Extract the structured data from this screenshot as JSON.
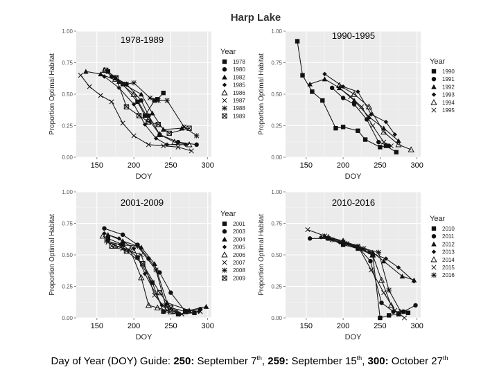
{
  "figure_title": "Harp Lake",
  "caption": {
    "lead": "Day of Year (DOY) Guide:",
    "items": [
      {
        "day": "250",
        "text": "September 7",
        "sup": "th",
        "sep": ","
      },
      {
        "day": "259",
        "text": "September 15",
        "sup": "th",
        "sep": ","
      },
      {
        "day": "300",
        "text": "October 27",
        "sup": "th",
        "sep": ""
      }
    ]
  },
  "chart_data": [
    {
      "type": "line",
      "title": "1978-1989",
      "xlabel": "DOY",
      "ylabel": "Proportion Optimal Habitat",
      "xlim": [
        122,
        305
      ],
      "ylim": [
        0,
        1
      ],
      "xticks": [
        "150",
        "200",
        "250",
        "300"
      ],
      "xtick_values": [
        150,
        200,
        250,
        300
      ],
      "yticks": [
        "0.00",
        "0.25",
        "0.50",
        "0.75",
        "1.00"
      ],
      "ytick_values": [
        0,
        0.25,
        0.5,
        0.75,
        1
      ],
      "legend_title": "Year",
      "series": [
        {
          "name": "1978",
          "marker": "square",
          "x": [
            165,
            185,
            205,
            215,
            228,
            232,
            240
          ],
          "y": [
            0.68,
            0.58,
            0.44,
            0.33,
            0.45,
            0.46,
            0.51
          ]
        },
        {
          "name": "1980",
          "marker": "circle",
          "x": [
            170,
            190,
            210,
            220,
            235,
            260,
            285
          ],
          "y": [
            0.64,
            0.58,
            0.45,
            0.33,
            0.18,
            0.12,
            0.1
          ]
        },
        {
          "name": "1982",
          "marker": "triangle",
          "x": [
            135,
            155,
            180,
            210,
            225,
            240,
            265
          ],
          "y": [
            0.68,
            0.66,
            0.6,
            0.5,
            0.35,
            0.22,
            0.23
          ]
        },
        {
          "name": "1985",
          "marker": "diamond",
          "x": [
            160,
            180,
            200,
            215,
            230,
            245,
            270
          ],
          "y": [
            0.64,
            0.55,
            0.42,
            0.26,
            0.15,
            0.1,
            0.1
          ]
        },
        {
          "name": "1986",
          "marker": "triangle-open",
          "x": [
            160,
            175,
            200,
            220,
            235,
            255,
            275
          ],
          "y": [
            0.69,
            0.62,
            0.5,
            0.3,
            0.18,
            0.12,
            0.1
          ]
        },
        {
          "name": "1987",
          "marker": "x",
          "x": [
            128,
            140,
            155,
            170,
            185,
            200,
            220,
            240,
            260,
            278
          ],
          "y": [
            0.65,
            0.56,
            0.49,
            0.44,
            0.27,
            0.17,
            0.1,
            0.09,
            0.08,
            0.05
          ]
        },
        {
          "name": "1988",
          "marker": "star",
          "x": [
            175,
            190,
            200,
            222,
            233,
            245,
            268,
            285
          ],
          "y": [
            0.63,
            0.58,
            0.59,
            0.47,
            0.45,
            0.45,
            0.24,
            0.17
          ]
        },
        {
          "name": "1989",
          "marker": "square-x",
          "x": [
            162,
            176,
            190,
            207,
            220,
            233,
            248,
            275
          ],
          "y": [
            0.69,
            0.63,
            0.4,
            0.33,
            0.28,
            0.26,
            0.19,
            0.23
          ]
        }
      ]
    },
    {
      "type": "line",
      "title": "1990-1995",
      "xlabel": "DOY",
      "ylabel": "Proportion Optimal Habitat",
      "xlim": [
        122,
        305
      ],
      "ylim": [
        0,
        1
      ],
      "xticks": [
        "150",
        "200",
        "250",
        "300"
      ],
      "xtick_values": [
        150,
        200,
        250,
        300
      ],
      "yticks": [
        "0.00",
        "0.25",
        "0.50",
        "0.75",
        "1.00"
      ],
      "ytick_values": [
        0,
        0.25,
        0.5,
        0.75,
        1
      ],
      "legend_title": "Year",
      "series": [
        {
          "name": "1990",
          "marker": "square",
          "x": [
            138,
            145,
            158,
            172,
            190,
            200,
            220,
            230,
            250,
            258,
            272
          ],
          "y": [
            0.92,
            0.65,
            0.52,
            0.45,
            0.23,
            0.24,
            0.21,
            0.14,
            0.08,
            0.09,
            0.04
          ]
        },
        {
          "name": "1991",
          "marker": "circle",
          "x": [
            185,
            200,
            215,
            232,
            248,
            262
          ],
          "y": [
            0.55,
            0.47,
            0.42,
            0.3,
            0.12,
            0.09
          ]
        },
        {
          "name": "1992",
          "marker": "triangle",
          "x": [
            155,
            175,
            195,
            215,
            235,
            255,
            275
          ],
          "y": [
            0.58,
            0.62,
            0.55,
            0.45,
            0.32,
            0.23,
            0.13
          ]
        },
        {
          "name": "1993",
          "marker": "diamond",
          "x": [
            175,
            200,
            220,
            238,
            258,
            270
          ],
          "y": [
            0.66,
            0.56,
            0.52,
            0.34,
            0.28,
            0.18
          ]
        },
        {
          "name": "1994",
          "marker": "triangle-open",
          "x": [
            195,
            215,
            235,
            255,
            275,
            292
          ],
          "y": [
            0.57,
            0.5,
            0.4,
            0.2,
            0.1,
            0.06
          ]
        },
        {
          "name": "1995",
          "marker": "x",
          "x": [
            195,
            210,
            225,
            240,
            255,
            265
          ],
          "y": [
            0.55,
            0.48,
            0.4,
            0.25,
            0.12,
            0.09
          ]
        }
      ]
    },
    {
      "type": "line",
      "title": "2001-2009",
      "xlabel": "DOY",
      "ylabel": "Proportion Optimal Habitat",
      "xlim": [
        122,
        305
      ],
      "ylim": [
        0,
        1
      ],
      "xticks": [
        "150",
        "200",
        "250",
        "300"
      ],
      "xtick_values": [
        150,
        200,
        250,
        300
      ],
      "yticks": [
        "0.00",
        "0.25",
        "0.50",
        "0.75",
        "1.00"
      ],
      "ytick_values": [
        0,
        0.25,
        0.5,
        0.75,
        1
      ],
      "legend_title": "Year",
      "series": [
        {
          "name": "2001",
          "marker": "square",
          "x": [
            165,
            185,
            205,
            225,
            240,
            260,
            282
          ],
          "y": [
            0.63,
            0.58,
            0.48,
            0.28,
            0.05,
            0.03,
            0.04
          ]
        },
        {
          "name": "2003",
          "marker": "circle",
          "x": [
            160,
            185,
            205,
            220,
            235,
            250,
            270,
            290
          ],
          "y": [
            0.71,
            0.66,
            0.58,
            0.47,
            0.36,
            0.2,
            0.05,
            0.07
          ]
        },
        {
          "name": "2004",
          "marker": "triangle",
          "x": [
            165,
            185,
            210,
            228,
            245,
            275,
            298
          ],
          "y": [
            0.66,
            0.61,
            0.56,
            0.43,
            0.12,
            0.06,
            0.09
          ]
        },
        {
          "name": "2005",
          "marker": "diamond",
          "x": [
            160,
            180,
            200,
            215,
            238,
            262,
            288
          ],
          "y": [
            0.67,
            0.63,
            0.55,
            0.35,
            0.1,
            0.03,
            0.05
          ]
        },
        {
          "name": "2006",
          "marker": "triangle-open",
          "x": [
            158,
            175,
            195,
            210,
            220,
            232,
            250
          ],
          "y": [
            0.65,
            0.57,
            0.54,
            0.32,
            0.1,
            0.08,
            0.05
          ]
        },
        {
          "name": "2007",
          "marker": "x",
          "x": [
            165,
            185,
            210,
            228,
            245,
            265,
            290
          ],
          "y": [
            0.6,
            0.55,
            0.5,
            0.18,
            0.06,
            0.03,
            0.05
          ]
        },
        {
          "name": "2008",
          "marker": "star",
          "x": [
            163,
            182,
            205,
            230,
            243,
            258
          ],
          "y": [
            0.61,
            0.58,
            0.57,
            0.38,
            0.1,
            0.05
          ]
        },
        {
          "name": "2009",
          "marker": "square-x",
          "x": [
            170,
            190,
            212,
            235,
            250,
            270
          ],
          "y": [
            0.57,
            0.53,
            0.43,
            0.2,
            0.08,
            0.05
          ]
        }
      ]
    },
    {
      "type": "line",
      "title": "2010-2016",
      "xlabel": "DOY",
      "ylabel": "Proportion Optimal Habitat",
      "xlim": [
        122,
        305
      ],
      "ylim": [
        0,
        1
      ],
      "xticks": [
        "150",
        "200",
        "250",
        "300"
      ],
      "xtick_values": [
        150,
        200,
        250,
        300
      ],
      "yticks": [
        "0.00",
        "0.25",
        "0.50",
        "0.75",
        "1.00"
      ],
      "ytick_values": [
        0,
        0.25,
        0.5,
        0.75,
        1
      ],
      "legend_title": "Year",
      "series": [
        {
          "name": "2010",
          "marker": "square",
          "x": [
            180,
            200,
            220,
            240,
            250,
            262,
            275,
            288
          ],
          "y": [
            0.63,
            0.58,
            0.55,
            0.5,
            0.0,
            0.02,
            0.03,
            0.04
          ]
        },
        {
          "name": "2011",
          "marker": "circle",
          "x": [
            155,
            180,
            200,
            222,
            237,
            252,
            268,
            282,
            298
          ],
          "y": [
            0.63,
            0.63,
            0.59,
            0.55,
            0.45,
            0.12,
            0.05,
            0.05,
            0.1
          ]
        },
        {
          "name": "2012",
          "marker": "triangle",
          "x": [
            175,
            200,
            220,
            240,
            255,
            280,
            296
          ],
          "y": [
            0.65,
            0.61,
            0.57,
            0.52,
            0.45,
            0.33,
            0.3
          ]
        },
        {
          "name": "2013",
          "marker": "diamond",
          "x": [
            170,
            195,
            215,
            235,
            258,
            275,
            296
          ],
          "y": [
            0.64,
            0.6,
            0.57,
            0.52,
            0.47,
            0.4,
            0.29
          ]
        },
        {
          "name": "2014",
          "marker": "triangle-open",
          "x": [
            180,
            200,
            222,
            240,
            252,
            265
          ],
          "y": [
            0.64,
            0.61,
            0.56,
            0.5,
            0.3,
            0.1
          ]
        },
        {
          "name": "2015",
          "marker": "x",
          "x": [
            152,
            175,
            200,
            220,
            238,
            255,
            270,
            283
          ],
          "y": [
            0.7,
            0.65,
            0.6,
            0.57,
            0.38,
            0.2,
            0.06,
            0.0
          ]
        },
        {
          "name": "2016",
          "marker": "star",
          "x": [
            185,
            205,
            228,
            248,
            262,
            278
          ],
          "y": [
            0.62,
            0.59,
            0.55,
            0.52,
            0.22,
            0.05
          ]
        }
      ]
    }
  ]
}
